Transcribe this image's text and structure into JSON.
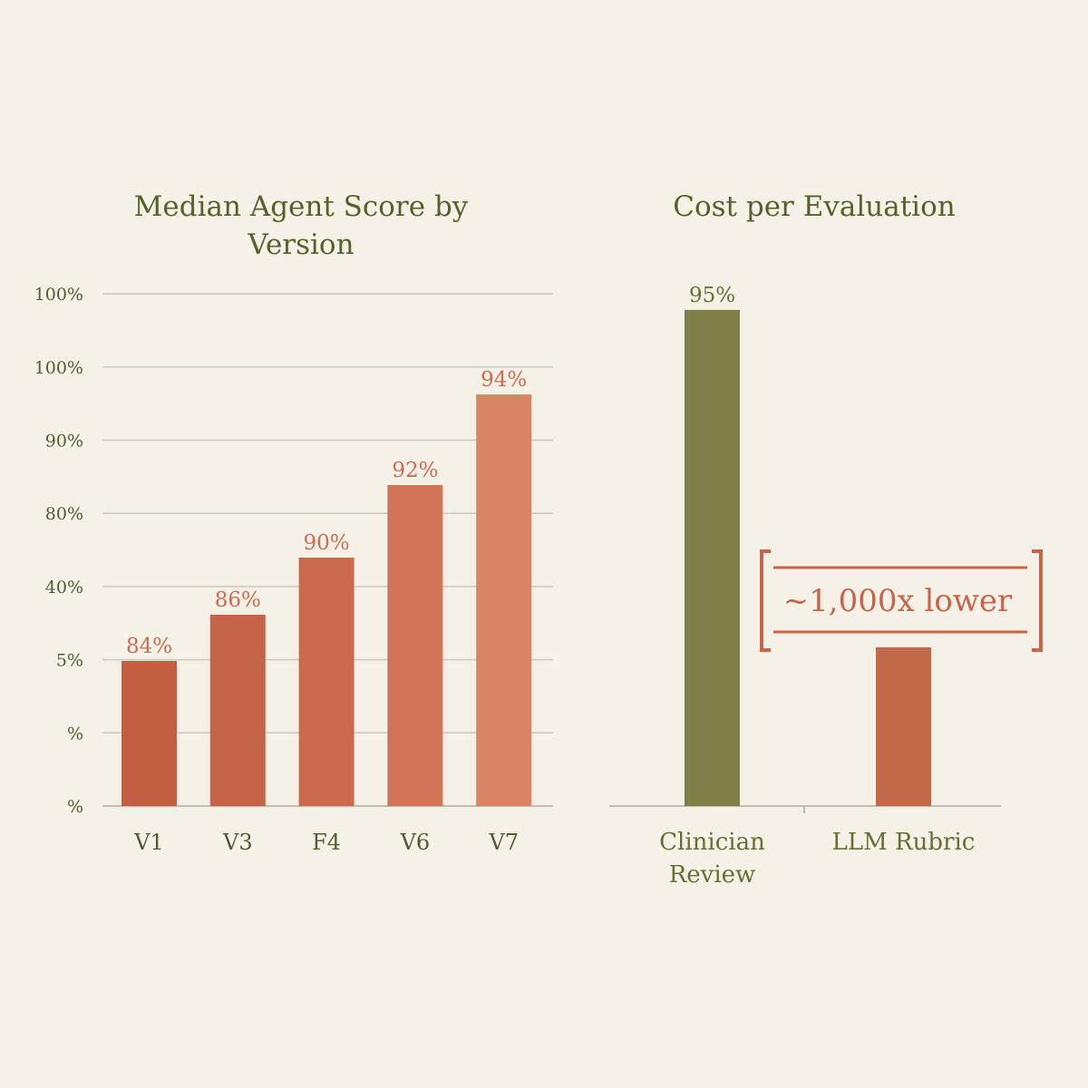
{
  "chart_data": [
    {
      "type": "bar",
      "title_lines": [
        "Median Agent Score by",
        "Version"
      ],
      "categories": [
        "V1",
        "V3",
        "F4",
        "V6",
        "V7"
      ],
      "values": [
        84,
        86,
        90,
        92,
        94
      ],
      "data_labels": [
        "84%",
        "86%",
        "90%",
        "92%",
        "94%"
      ],
      "y_tick_labels": [
        "%",
        "%",
        "5%",
        "40%",
        "80%",
        "90%",
        "100%",
        "100%"
      ],
      "grid": true,
      "colors": [
        "#c25e42",
        "#c6644a",
        "#cb6a4e",
        "#d07356",
        "#d98565"
      ],
      "label_color": "#cf6b52"
    },
    {
      "type": "bar",
      "title": "Cost per Evaluation",
      "categories": [
        [
          "Clinician",
          "Review"
        ],
        [
          "LLM Rubric"
        ]
      ],
      "values": [
        95,
        null
      ],
      "data_labels": [
        "95%",
        ""
      ],
      "colors": [
        "#7e7f46",
        "#c4684a"
      ],
      "label_color": "#6a6d35",
      "annotation": "~1,000x lower",
      "annotation_color": "#c8644a",
      "grid": false
    }
  ]
}
